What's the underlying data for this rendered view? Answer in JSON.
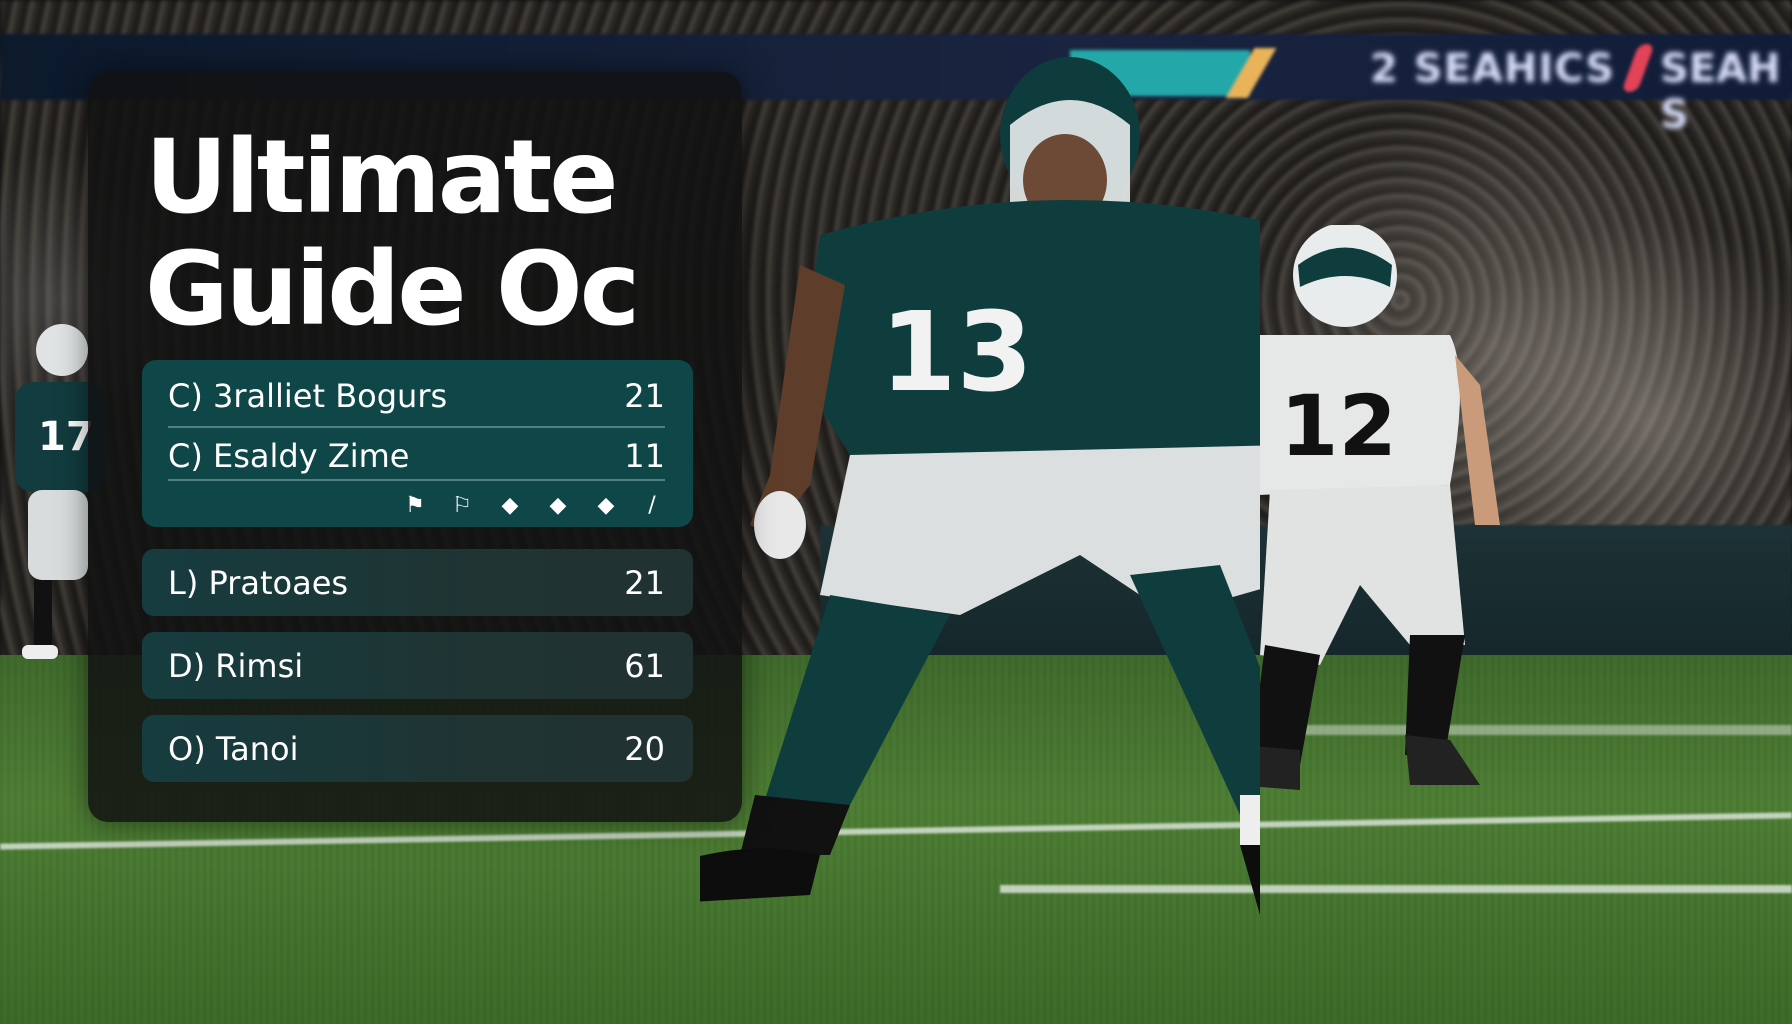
{
  "background": {
    "scoreboard_text": "2 SEAHICS",
    "scoreboard_text_2": "SEAH S",
    "jersey_numbers": [
      "13",
      "12",
      "17"
    ],
    "colors": {
      "jersey_green": "#0f3d3e",
      "panel_teal": "#0f4648",
      "field": "#4a7a32"
    }
  },
  "panel": {
    "title_line1": "Ultimate",
    "title_line2": "Guide Oc",
    "highlight_card": {
      "rows": [
        {
          "label": "C) 3ralliet Bogurs",
          "value": "21"
        },
        {
          "label": "C) Esaldy Zime",
          "value": "11"
        }
      ],
      "icons": [
        "flag-icon",
        "flag-icon",
        "diamond-icon",
        "diamond-icon",
        "diamond-icon",
        "slash-icon"
      ]
    },
    "cards": [
      {
        "label": "L) Pratoaes",
        "value": "21"
      },
      {
        "label": "D) Rimsi",
        "value": "61"
      },
      {
        "label": "O) Tanoi",
        "value": "20"
      }
    ]
  }
}
